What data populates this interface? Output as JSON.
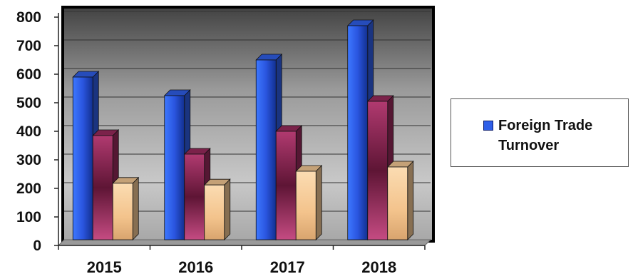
{
  "chart_data": {
    "type": "bar",
    "style": "3d-clustered",
    "categories": [
      "2015",
      "2016",
      "2017",
      "2018"
    ],
    "series": [
      {
        "name": "Foreign Trade Turnover",
        "values": [
          570,
          505,
          630,
          750
        ],
        "color": "#2f5fe8"
      },
      {
        "values": [
          365,
          300,
          380,
          485
        ],
        "color": "#9a2a5c"
      },
      {
        "values": [
          198,
          192,
          240,
          255
        ],
        "color": "#f5c995"
      }
    ],
    "yticks": [
      "0",
      "100",
      "200",
      "300",
      "400",
      "500",
      "600",
      "700",
      "800"
    ],
    "ylim": [
      0,
      800
    ],
    "grid": true,
    "legend": "right",
    "legend_label": "Foreign Trade Turnover",
    "colors": {
      "wall": "#8f8f8f",
      "floor": "#9a9a9a",
      "grid": "#333333"
    }
  }
}
